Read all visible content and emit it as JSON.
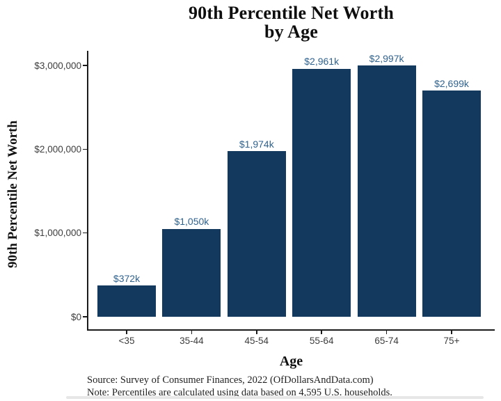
{
  "title": {
    "line1": "90th Percentile Net Worth",
    "line2": "by Age"
  },
  "chart_data": {
    "type": "bar",
    "title": "90th Percentile Net Worth by Age",
    "xlabel": "Age",
    "ylabel": "90th Percentile Net Worth",
    "categories": [
      "<35",
      "35-44",
      "45-54",
      "55-64",
      "65-74",
      "75+"
    ],
    "values": [
      372000,
      1050000,
      1974000,
      2961000,
      2997000,
      2699000
    ],
    "bar_labels": [
      "$372k",
      "$1,050k",
      "$1,974k",
      "$2,961k",
      "$2,997k",
      "$2,699k"
    ],
    "y_ticks": [
      {
        "value": 0,
        "label": "$0"
      },
      {
        "value": 1000000,
        "label": "$1,000,000"
      },
      {
        "value": 2000000,
        "label": "$2,000,000"
      },
      {
        "value": 3000000,
        "label": "$3,000,000"
      }
    ],
    "ylim": [
      0,
      3100000
    ],
    "grid": false,
    "legend": null,
    "bar_color": "#133a5e",
    "value_label_color": "#30628f",
    "axis_color": "#1a1a1a"
  },
  "caption": {
    "source": "Source:  Survey of Consumer Finances, 2022 (OfDollarsAndData.com)",
    "note": "Note: Percentiles are calculated using data based on 4,595 U.S. households."
  }
}
